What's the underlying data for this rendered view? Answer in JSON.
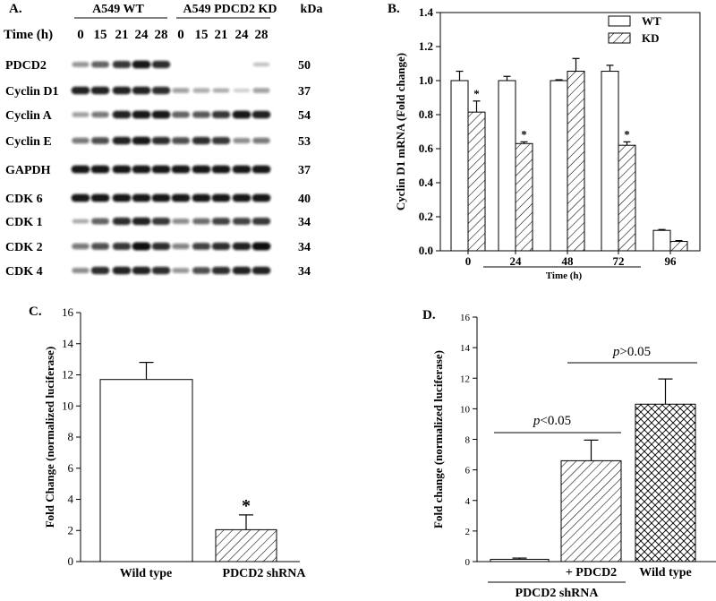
{
  "colors": {
    "bg": "#ffffff",
    "ink": "#000000",
    "band": "#111111"
  },
  "panel_a": {
    "label": "A.",
    "group_wt": "A549 WT",
    "group_kd": "A549 PDCD2 KD",
    "kda_header": "kDa",
    "time_header": "Time (h)",
    "times": [
      "0",
      "15",
      "21",
      "24",
      "28",
      "0",
      "15",
      "21",
      "24",
      "28"
    ],
    "rows": [
      {
        "protein": "PDCD2",
        "kda": "50",
        "intensity": [
          0.35,
          0.6,
          0.8,
          0.95,
          0.85,
          0.0,
          0.0,
          0.0,
          0.0,
          0.1
        ]
      },
      {
        "protein": "Cyclin D1",
        "kda": "37",
        "intensity": [
          0.9,
          0.9,
          0.9,
          0.9,
          0.85,
          0.3,
          0.25,
          0.2,
          0.05,
          0.3
        ]
      },
      {
        "protein": "Cyclin A",
        "kda": "54",
        "intensity": [
          0.3,
          0.5,
          0.9,
          0.95,
          0.95,
          0.6,
          0.65,
          0.8,
          0.95,
          0.9
        ]
      },
      {
        "protein": "Cyclin E",
        "kda": "53",
        "intensity": [
          0.5,
          0.7,
          0.9,
          0.95,
          0.85,
          0.7,
          0.85,
          0.8,
          0.4,
          0.5
        ]
      },
      {
        "protein": "GAPDH",
        "kda": "37",
        "intensity": [
          0.95,
          0.95,
          0.95,
          0.95,
          0.95,
          0.95,
          0.95,
          0.95,
          0.95,
          0.95
        ]
      },
      {
        "protein": "CDK 6",
        "kda": "40",
        "intensity": [
          0.95,
          0.95,
          0.95,
          0.95,
          0.95,
          0.95,
          0.95,
          0.95,
          0.95,
          0.95
        ]
      },
      {
        "protein": "CDK 1",
        "kda": "34",
        "intensity": [
          0.2,
          0.6,
          0.85,
          0.9,
          0.8,
          0.4,
          0.55,
          0.75,
          0.75,
          0.8
        ]
      },
      {
        "protein": "CDK 2",
        "kda": "34",
        "intensity": [
          0.5,
          0.7,
          0.8,
          1.0,
          0.85,
          0.45,
          0.75,
          0.85,
          0.9,
          1.0
        ]
      },
      {
        "protein": "CDK 4",
        "kda": "34",
        "intensity": [
          0.4,
          0.85,
          0.9,
          0.9,
          0.85,
          0.35,
          0.7,
          0.85,
          0.9,
          0.9
        ]
      }
    ]
  },
  "chart_data": [
    {
      "panel": "B.",
      "type": "bar",
      "title": "",
      "ylabel": "Cyclin D1 mRNA (Fold change)",
      "xlabel": "Time (h)",
      "ylim": [
        0,
        1.4
      ],
      "yticks": [
        "0.0",
        "0.2",
        "0.4",
        "0.6",
        "0.8",
        "1.0",
        "1.2",
        "1.4"
      ],
      "categories": [
        "0",
        "24",
        "48",
        "72",
        "96"
      ],
      "legend": [
        "WT",
        "KD"
      ],
      "legend_position": "top-right",
      "series": [
        {
          "name": "WT",
          "values": [
            1.0,
            1.0,
            1.0,
            1.055,
            0.12
          ],
          "errors": [
            0.055,
            0.025,
            0.005,
            0.035,
            0.005
          ]
        },
        {
          "name": "KD",
          "values": [
            0.815,
            0.63,
            1.055,
            0.62,
            0.055
          ],
          "errors": [
            0.065,
            0.01,
            0.075,
            0.02,
            0.005
          ]
        }
      ],
      "significance": [
        "*",
        "*",
        "",
        "*",
        ""
      ]
    },
    {
      "panel": "C.",
      "type": "bar",
      "title": "",
      "ylabel": "Fold Change (normalized luciferase)",
      "xlabel": "",
      "ylim": [
        0,
        16
      ],
      "yticks": [
        "0",
        "2",
        "4",
        "6",
        "8",
        "10",
        "12",
        "14",
        "16"
      ],
      "categories": [
        "Wild type",
        "PDCD2 shRNA"
      ],
      "values": [
        11.7,
        2.05
      ],
      "errors": [
        1.1,
        0.95
      ],
      "significance": [
        "",
        "*"
      ]
    },
    {
      "panel": "D.",
      "type": "bar",
      "title": "",
      "ylabel": "Fold change (normalized luciferase)",
      "xlabel": "",
      "ylim": [
        0,
        16
      ],
      "yticks": [
        "0",
        "2",
        "4",
        "6",
        "8",
        "10",
        "12",
        "14",
        "16"
      ],
      "categories": [
        "",
        "+ PDCD2",
        "Wild type"
      ],
      "group_label": "PDCD2 shRNA",
      "values": [
        0.15,
        6.6,
        10.3
      ],
      "errors": [
        0.08,
        1.35,
        1.65
      ],
      "comparisons": [
        {
          "label_p": "p",
          "label_rest": "<0.05"
        },
        {
          "label_p": "p",
          "label_rest": ">0.05"
        }
      ]
    }
  ]
}
